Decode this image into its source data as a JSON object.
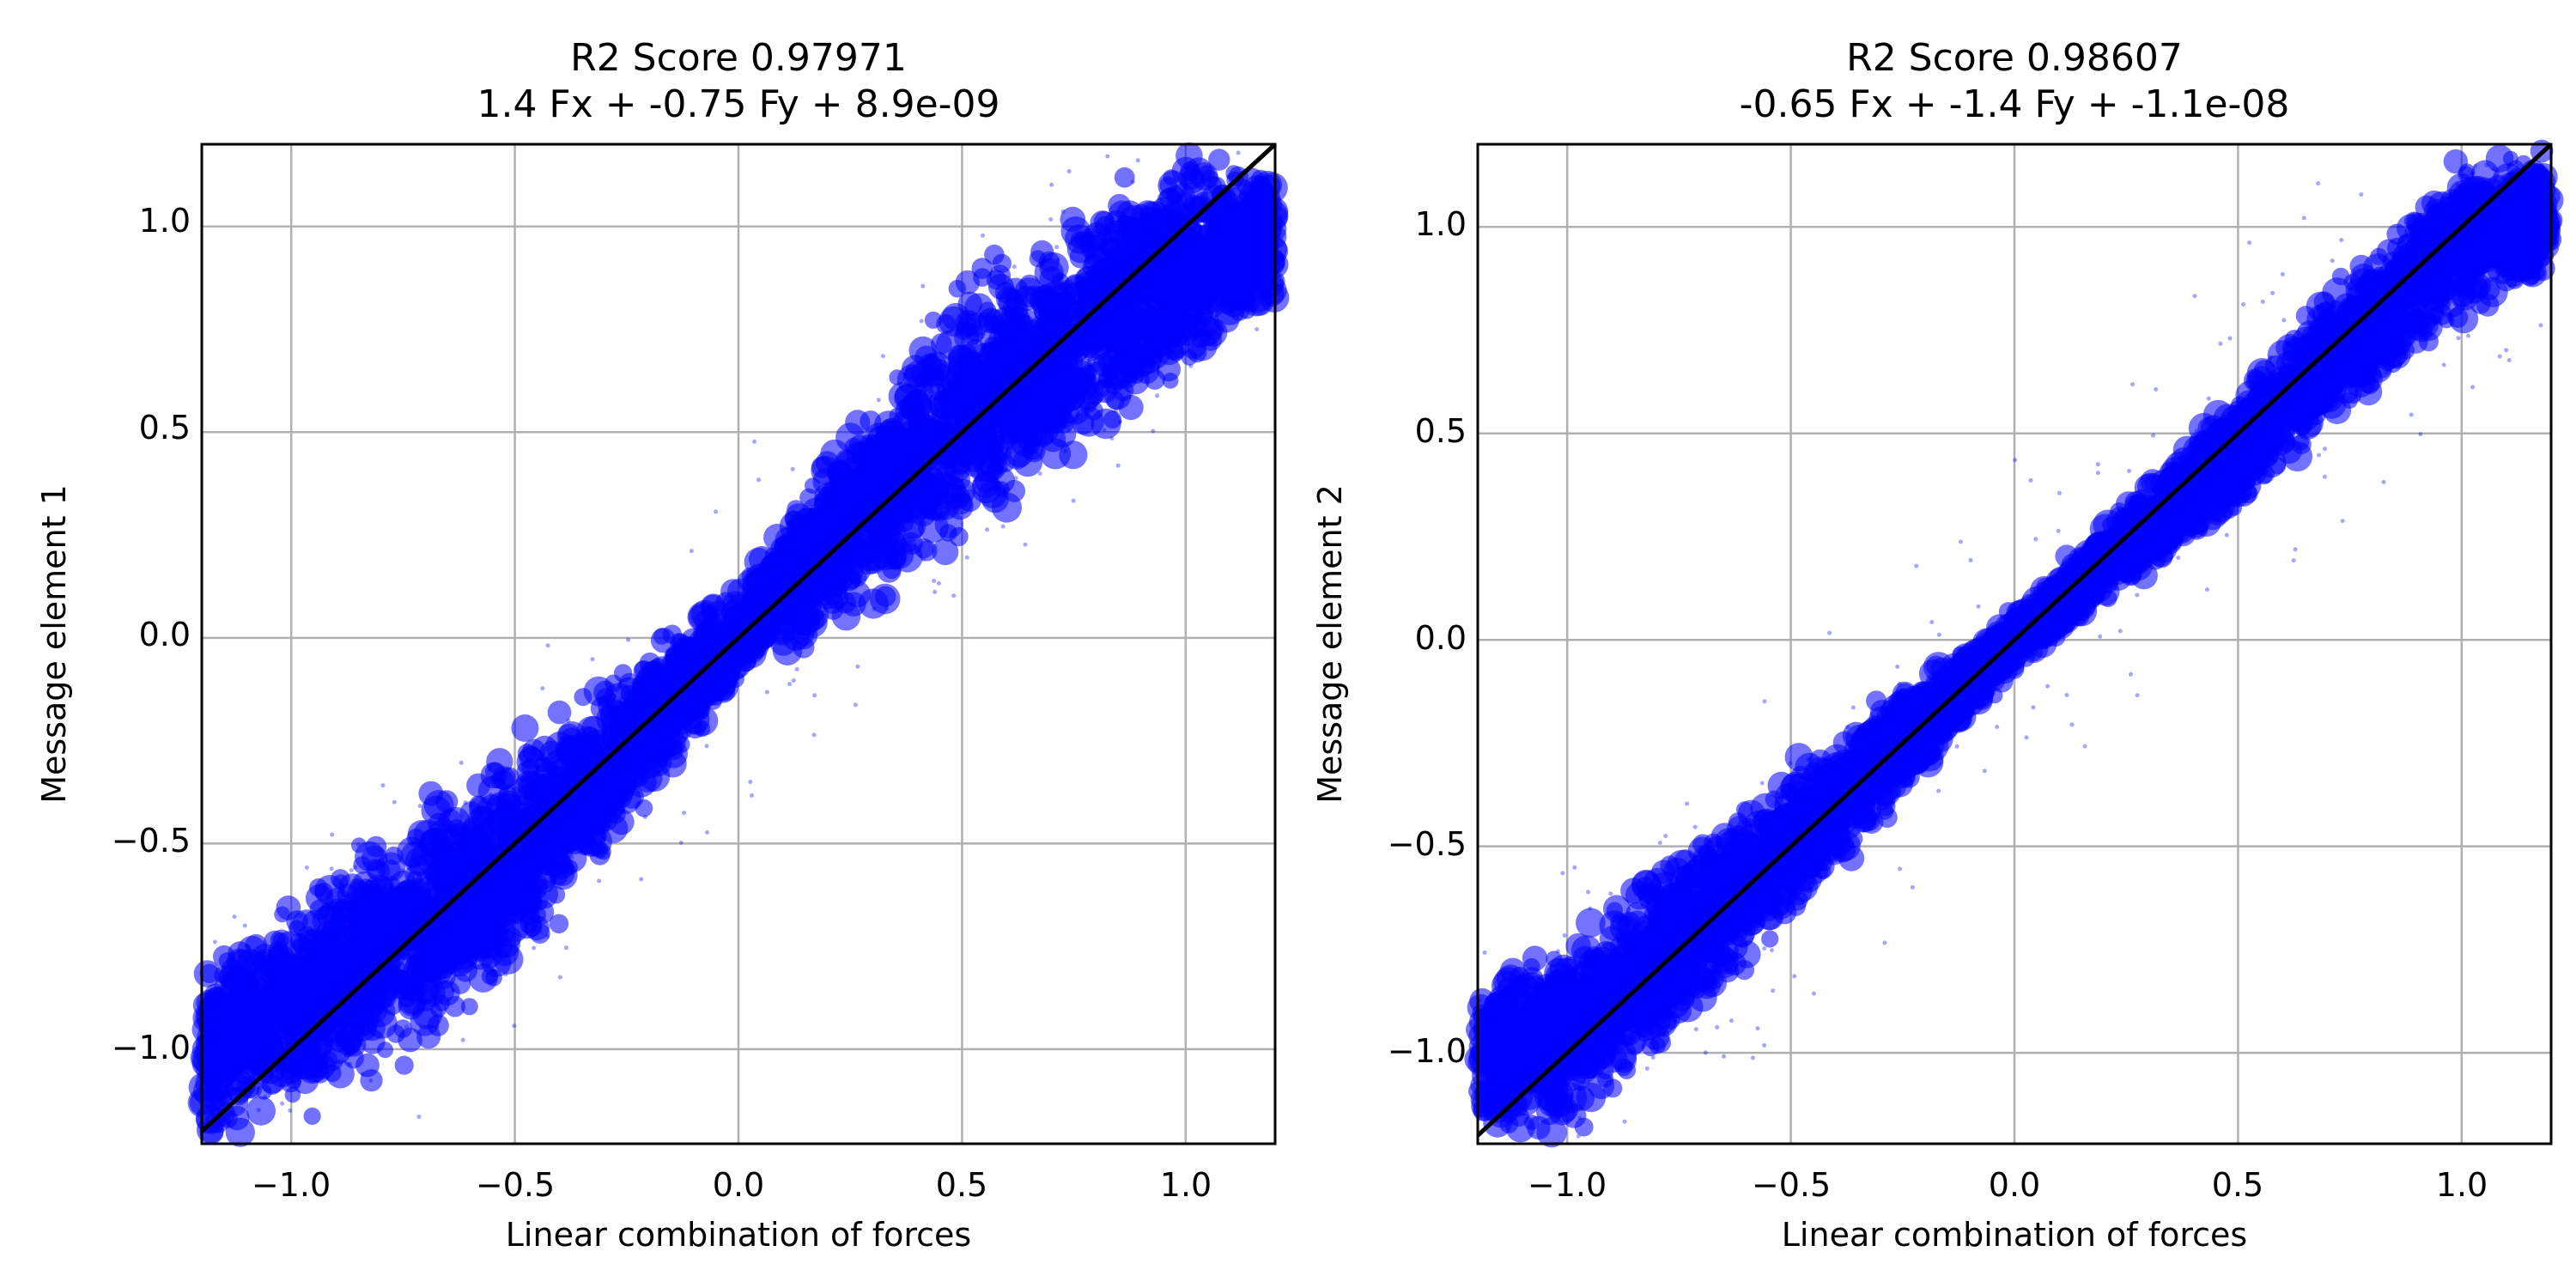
{
  "chart_data": [
    {
      "type": "scatter",
      "title": "R2 Score 0.97971",
      "subtitle": "1.4 Fx + -0.75 Fy + 8.9e-09",
      "xlabel": "Linear combination of forces",
      "ylabel": "Message element 1",
      "xlim": [
        -1.2,
        1.2
      ],
      "ylim": [
        -1.23,
        1.2
      ],
      "xticks": [
        -1.0,
        -0.5,
        0.0,
        0.5,
        1.0
      ],
      "xtick_labels": [
        "−1.0",
        "−0.5",
        "0.0",
        "0.5",
        "1.0"
      ],
      "yticks": [
        -1.0,
        -0.5,
        0.0,
        0.5,
        1.0
      ],
      "ytick_labels": [
        "−1.0",
        "−0.5",
        "0.0",
        "0.5",
        "1.0"
      ],
      "grid": true,
      "reference_line": {
        "slope": 1,
        "intercept": 0,
        "color": "#000000"
      },
      "point_color": "#0000ff",
      "scatter_band": [
        {
          "x": -1.2,
          "lower": -1.23,
          "upper": -0.77
        },
        {
          "x": -1.0,
          "lower": -1.23,
          "upper": -0.6
        },
        {
          "x": -0.5,
          "lower": -0.85,
          "upper": -0.22
        },
        {
          "x": 0.0,
          "lower": -0.12,
          "upper": 0.14
        },
        {
          "x": 0.5,
          "lower": 0.2,
          "upper": 0.92
        },
        {
          "x": 1.0,
          "lower": 0.6,
          "upper": 1.2
        },
        {
          "x": 1.2,
          "lower": 0.77,
          "upper": 1.2
        }
      ]
    },
    {
      "type": "scatter",
      "title": "R2 Score 0.98607",
      "subtitle": "-0.65 Fx + -1.4 Fy + -1.1e-08",
      "xlabel": "Linear combination of forces",
      "ylabel": "Message element 2",
      "xlim": [
        -1.2,
        1.2
      ],
      "ylim": [
        -1.22,
        1.2
      ],
      "xticks": [
        -1.0,
        -0.5,
        0.0,
        0.5,
        1.0
      ],
      "xtick_labels": [
        "−1.0",
        "−0.5",
        "0.0",
        "0.5",
        "1.0"
      ],
      "yticks": [
        -1.0,
        -0.5,
        0.0,
        0.5,
        1.0
      ],
      "ytick_labels": [
        "−1.0",
        "−0.5",
        "0.0",
        "0.5",
        "1.0"
      ],
      "grid": true,
      "reference_line": {
        "slope": 1,
        "intercept": 0,
        "color": "#000000"
      },
      "point_color": "#0000ff",
      "scatter_band": [
        {
          "x": -1.2,
          "lower": -1.22,
          "upper": -0.8
        },
        {
          "x": -1.0,
          "lower": -1.22,
          "upper": -0.7
        },
        {
          "x": -0.5,
          "lower": -0.72,
          "upper": -0.28
        },
        {
          "x": 0.0,
          "lower": -0.08,
          "upper": 0.08
        },
        {
          "x": 0.5,
          "lower": 0.3,
          "upper": 0.62
        },
        {
          "x": 1.0,
          "lower": 0.75,
          "upper": 1.2
        },
        {
          "x": 1.2,
          "lower": 0.85,
          "upper": 1.2
        }
      ]
    }
  ]
}
